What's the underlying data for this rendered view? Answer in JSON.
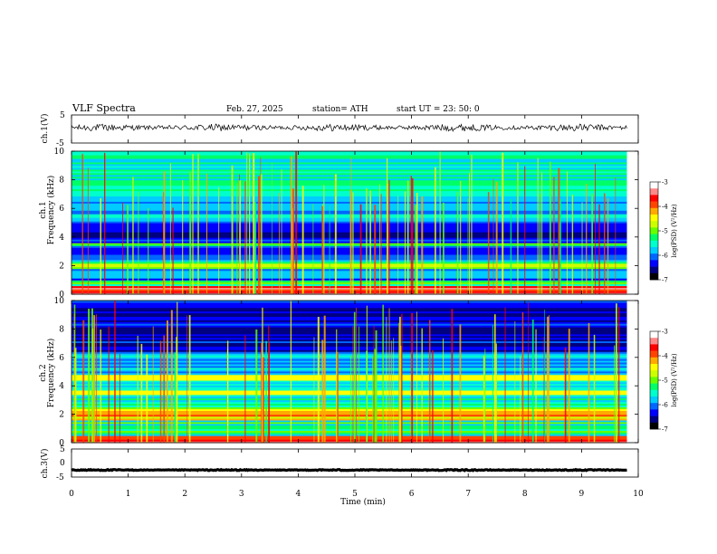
{
  "header": {
    "title": "VLF  Spectra",
    "date": "Feb. 27, 2025",
    "station": "station= ATH",
    "start_ut": "start  UT  =    23: 50: 0"
  },
  "colors": {
    "waveform": "#000000",
    "spectrogram_palette": [
      "#000000",
      "#000080",
      "#0000ff",
      "#0066ff",
      "#00ccff",
      "#00ffcc",
      "#00ff66",
      "#66ff00",
      "#ccff00",
      "#ffff00",
      "#ffaa00",
      "#ff4400",
      "#ff0000",
      "#ff8888",
      "#ffffff"
    ]
  },
  "chart_data": [
    {
      "type": "line",
      "name": "waveform-ch1",
      "ylabel": "ch.1(V)",
      "ylim": [
        -5,
        5
      ],
      "y_ticks": [
        "5",
        "-5"
      ],
      "xlim": [
        0,
        10
      ],
      "data_end_min": 9.8,
      "baseline_v": 0.5,
      "noise_amplitude_v": 1.0
    },
    {
      "type": "heatmap",
      "name": "spectrogram-ch1",
      "ylabel": "ch.1\nFrequency (kHz)",
      "ylim": [
        0,
        10
      ],
      "y_ticks": [
        "0",
        "2",
        "4",
        "6",
        "8",
        "10"
      ],
      "xlim": [
        0,
        10
      ],
      "data_end_min": 9.8,
      "colorbar": {
        "label": "log(PSD) (V²/Hz)",
        "range": [
          -7,
          -3
        ],
        "ticks": [
          "-3",
          "-4",
          "-5",
          "-6",
          "-7"
        ]
      },
      "bands_khz": [
        {
          "range": [
            0.0,
            0.6
          ],
          "level": -3.6
        },
        {
          "range": [
            0.6,
            1.0
          ],
          "level": -5.2
        },
        {
          "range": [
            1.0,
            1.8
          ],
          "level": -6.0
        },
        {
          "range": [
            1.8,
            2.3
          ],
          "level": -5.0
        },
        {
          "range": [
            2.3,
            3.4
          ],
          "level": -6.1
        },
        {
          "range": [
            3.4,
            3.6
          ],
          "level": -5.3
        },
        {
          "range": [
            3.6,
            5.0
          ],
          "level": -6.3
        },
        {
          "range": [
            5.0,
            6.5
          ],
          "level": -5.8
        },
        {
          "range": [
            6.5,
            10.0
          ],
          "level": -5.5
        }
      ],
      "sferics_per_min": 10
    },
    {
      "type": "heatmap",
      "name": "spectrogram-ch2",
      "ylabel": "ch.2\nFrequency (kHz)",
      "ylim": [
        0,
        10
      ],
      "y_ticks": [
        "0",
        "2",
        "4",
        "6",
        "8",
        "10"
      ],
      "xlim": [
        0,
        10
      ],
      "data_end_min": 9.8,
      "colorbar": {
        "label": "log(PSD) (V²/Hz)",
        "range": [
          -7,
          -3
        ],
        "ticks": [
          "-3",
          "-4",
          "-5",
          "-6",
          "-7"
        ]
      },
      "bands_khz": [
        {
          "range": [
            0.0,
            0.5
          ],
          "level": -3.8
        },
        {
          "range": [
            0.5,
            1.6
          ],
          "level": -5.4
        },
        {
          "range": [
            1.6,
            2.4
          ],
          "level": -4.4
        },
        {
          "range": [
            2.4,
            3.4
          ],
          "level": -5.4
        },
        {
          "range": [
            3.4,
            3.7
          ],
          "level": -4.3
        },
        {
          "range": [
            3.7,
            4.4
          ],
          "level": -5.6
        },
        {
          "range": [
            4.4,
            4.8
          ],
          "level": -4.6
        },
        {
          "range": [
            4.8,
            6.3
          ],
          "level": -5.8
        },
        {
          "range": [
            6.3,
            10.0
          ],
          "level": -6.4
        }
      ],
      "sferics_per_min": 10
    },
    {
      "type": "line",
      "name": "waveform-ch3",
      "ylabel": "ch.3(V)",
      "ylim": [
        -5,
        5
      ],
      "y_ticks": [
        "5",
        "0",
        "-5"
      ],
      "xlim": [
        0,
        10
      ],
      "data_end_min": 9.8,
      "baseline_v": -2.5,
      "noise_amplitude_v": 0.15
    }
  ],
  "xaxis": {
    "label": "Time  (min)",
    "ticks": [
      "0",
      "1",
      "2",
      "3",
      "4",
      "5",
      "6",
      "7",
      "8",
      "9",
      "10"
    ],
    "xlim": [
      0,
      10
    ]
  }
}
